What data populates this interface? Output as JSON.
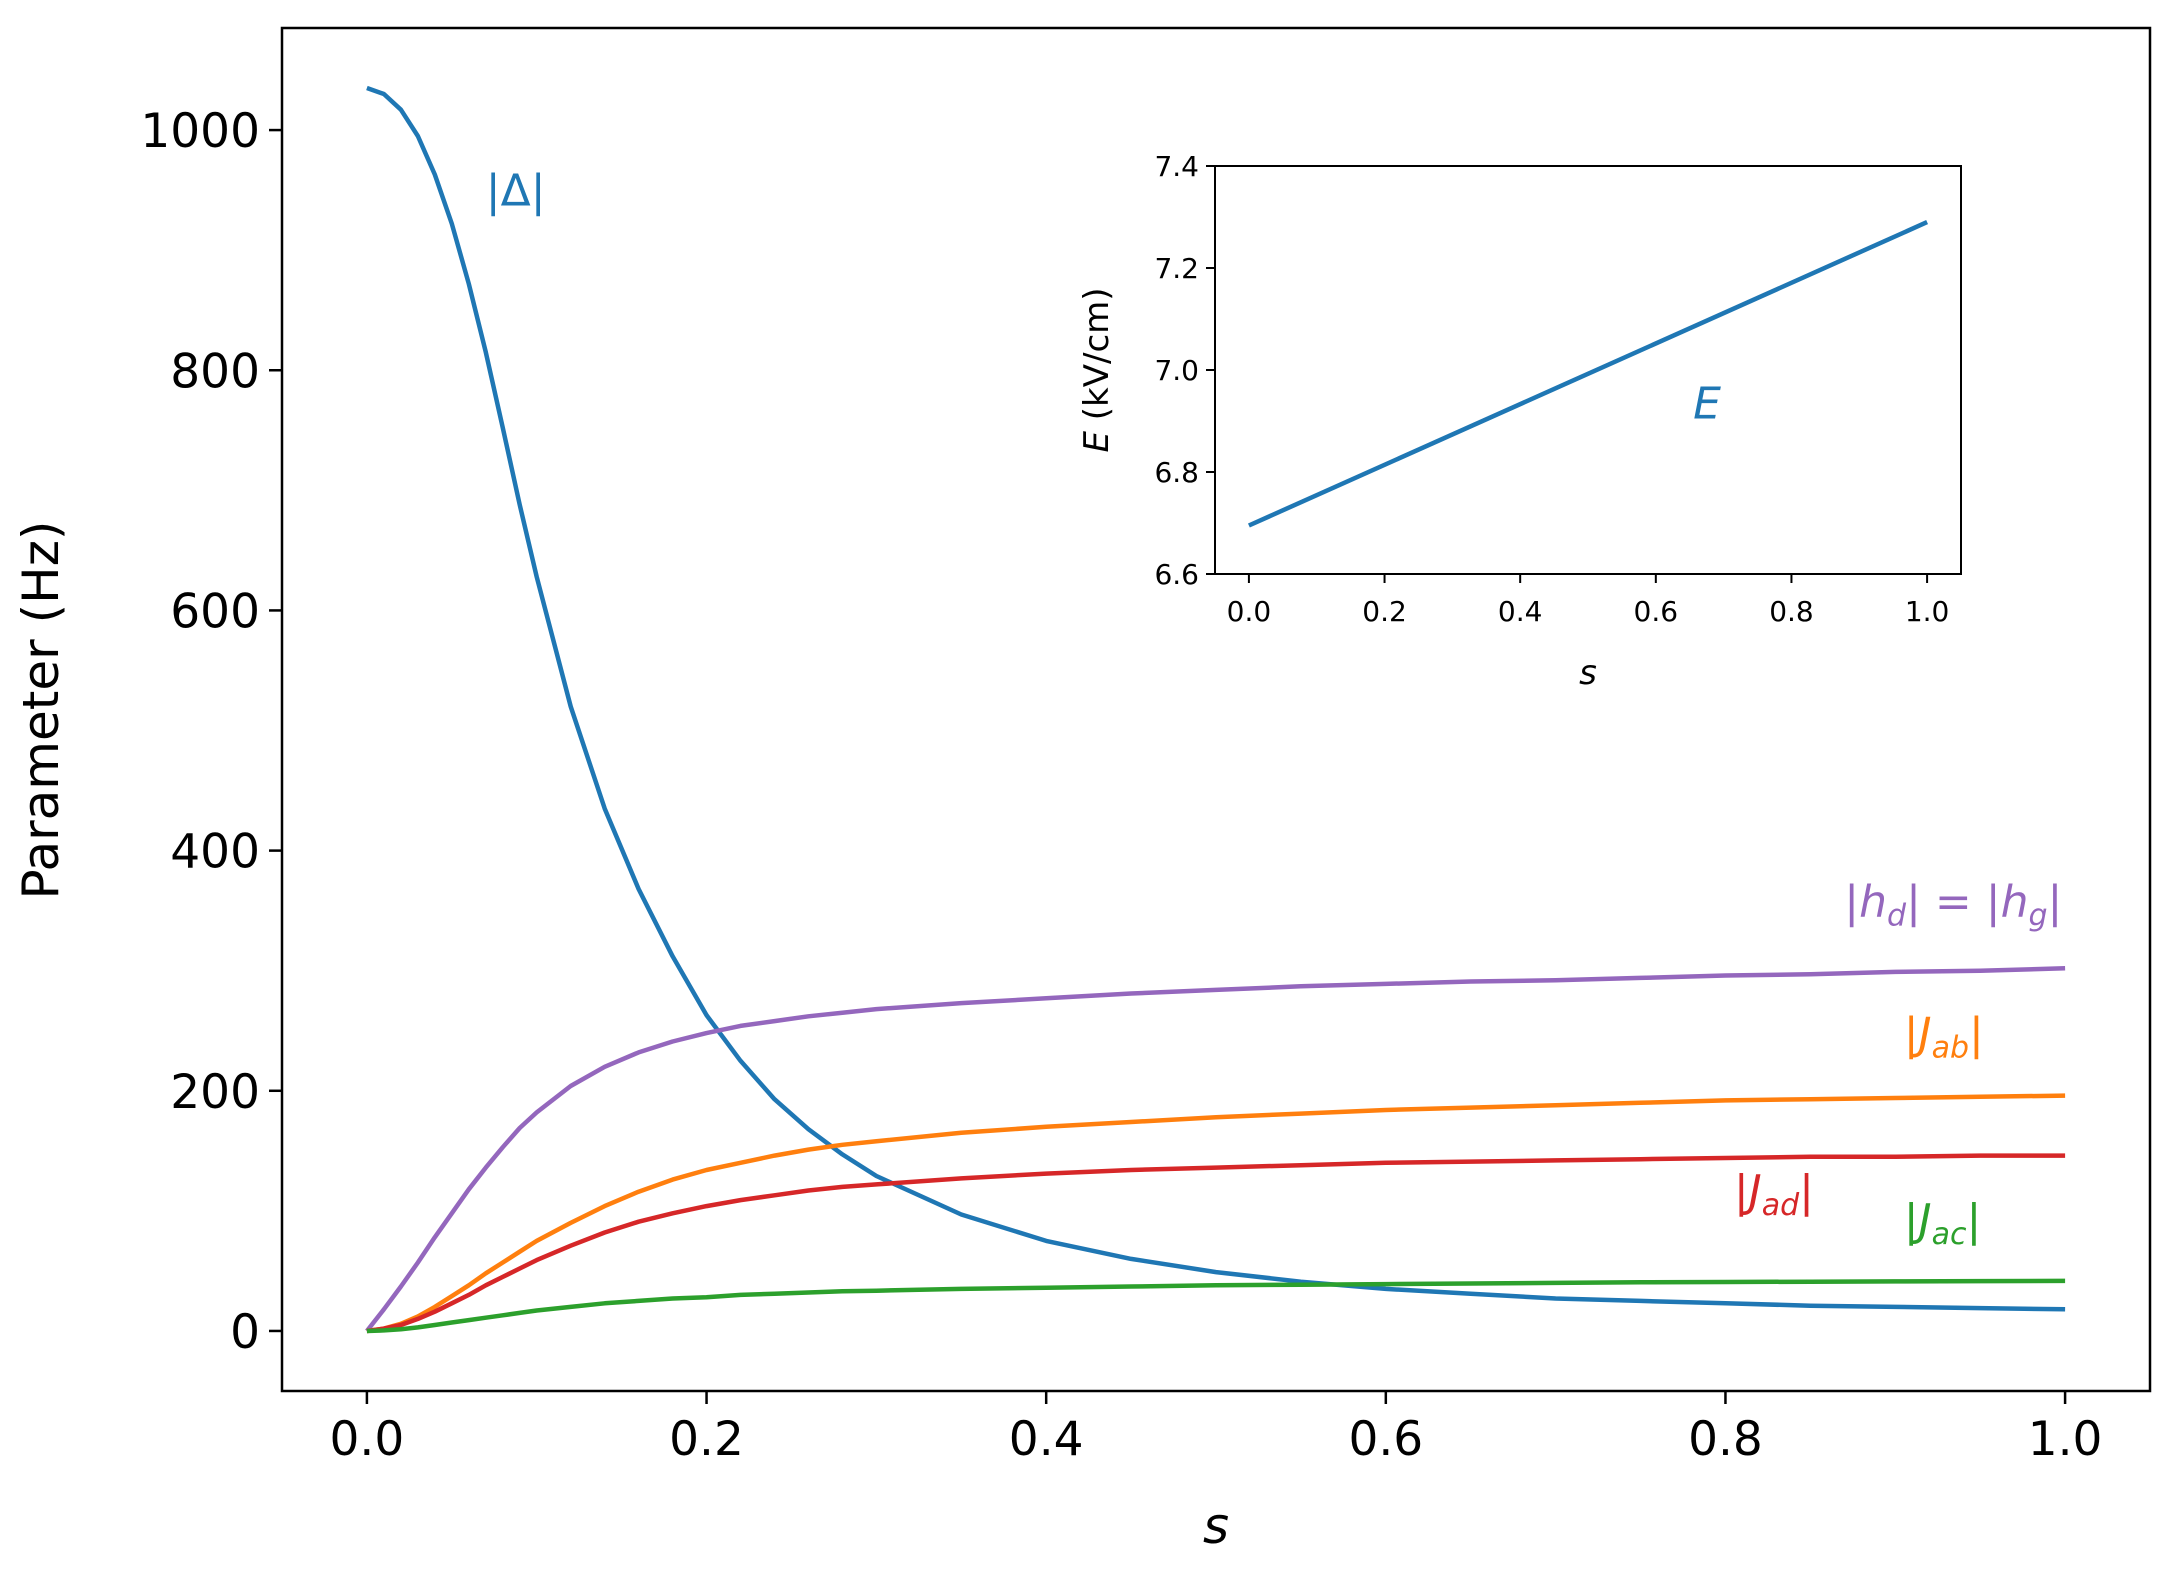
{
  "chart_data": [
    {
      "type": "line",
      "xlabel": "s",
      "ylabel": "Parameter (Hz)",
      "xlim": [
        -0.05,
        1.05
      ],
      "ylim": [
        -50,
        1085
      ],
      "x_ticks": [
        0.0,
        0.2,
        0.4,
        0.6,
        0.8,
        1.0
      ],
      "x_tick_labels": [
        "0.0",
        "0.2",
        "0.4",
        "0.6",
        "0.8",
        "1.0"
      ],
      "y_ticks": [
        0,
        200,
        400,
        600,
        800,
        1000
      ],
      "y_tick_labels": [
        "0",
        "200",
        "400",
        "600",
        "800",
        "1000"
      ],
      "grid": false,
      "legend": "none",
      "x": [
        0.0,
        0.01,
        0.02,
        0.03,
        0.04,
        0.05,
        0.06,
        0.07,
        0.08,
        0.09,
        0.1,
        0.12,
        0.14,
        0.16,
        0.18,
        0.2,
        0.22,
        0.24,
        0.26,
        0.28,
        0.3,
        0.35,
        0.4,
        0.45,
        0.5,
        0.55,
        0.6,
        0.65,
        0.7,
        0.75,
        0.8,
        0.85,
        0.9,
        0.95,
        1.0
      ],
      "series": [
        {
          "color": "#1f77b4",
          "values": [
            1035,
            1030,
            1017,
            995,
            963,
            922,
            872,
            815,
            752,
            688,
            628,
            520,
            435,
            368,
            312,
            263,
            225,
            193,
            168,
            147,
            129,
            97,
            75,
            60,
            49,
            41,
            35,
            31,
            27,
            25,
            23,
            21,
            20,
            19,
            18
          ]
        },
        {
          "color": "#9467bd",
          "values": [
            0,
            18,
            37,
            57,
            78,
            98,
            118,
            136,
            153,
            169,
            182,
            204,
            220,
            232,
            241,
            248,
            254,
            258,
            262,
            265,
            268,
            273,
            277,
            281,
            284,
            287,
            289,
            291,
            292,
            294,
            296,
            297,
            299,
            300,
            302
          ]
        },
        {
          "color": "#ff7f0e",
          "values": [
            0,
            2,
            6,
            12,
            20,
            29,
            38,
            48,
            57,
            66,
            75,
            90,
            104,
            116,
            126,
            134,
            140,
            146,
            151,
            155,
            158,
            165,
            170,
            174,
            178,
            181,
            184,
            186,
            188,
            190,
            192,
            193,
            194,
            195,
            196
          ]
        },
        {
          "color": "#d62728",
          "values": [
            0,
            2,
            5,
            10,
            16,
            23,
            30,
            38,
            45,
            52,
            59,
            71,
            82,
            91,
            98,
            104,
            109,
            113,
            117,
            120,
            122,
            127,
            131,
            134,
            136,
            138,
            140,
            141,
            142,
            143,
            144,
            145,
            145,
            146,
            146
          ]
        },
        {
          "color": "#2ca02c",
          "values": [
            0,
            0.5,
            1.5,
            3,
            5,
            7,
            9,
            11,
            13,
            15,
            17,
            20,
            23,
            25,
            27,
            28,
            30,
            31,
            32,
            33,
            33.5,
            35,
            36,
            37,
            38,
            38.5,
            39,
            39.5,
            40,
            40.5,
            40.8,
            41,
            41.3,
            41.5,
            41.7
          ]
        }
      ],
      "annotations": [
        {
          "text": "|Δ|",
          "x": 0.07,
          "y": 937,
          "color": "#1f77b4"
        },
        {
          "text": "|h_d| = |h_g|",
          "x": 0.87,
          "y": 345,
          "color": "#9467bd"
        },
        {
          "text": "|J_ab|",
          "x": 0.905,
          "y": 235,
          "color": "#ff7f0e"
        },
        {
          "text": "|J_ad|",
          "x": 0.805,
          "y": 104,
          "color": "#d62728"
        },
        {
          "text": "|J_ac|",
          "x": 0.905,
          "y": 80,
          "color": "#2ca02c"
        }
      ]
    },
    {
      "type": "line",
      "xlabel": "s",
      "ylabel": "E (kV/cm)",
      "xlim": [
        -0.05,
        1.05
      ],
      "ylim": [
        6.6,
        7.4
      ],
      "x_ticks": [
        0.0,
        0.2,
        0.4,
        0.6,
        0.8,
        1.0
      ],
      "x_tick_labels": [
        "0.0",
        "0.2",
        "0.4",
        "0.6",
        "0.8",
        "1.0"
      ],
      "y_ticks": [
        6.6,
        6.8,
        7.0,
        7.2,
        7.4
      ],
      "y_tick_labels": [
        "6.6",
        "6.8",
        "7.0",
        "7.2",
        "7.4"
      ],
      "grid": false,
      "legend": "none",
      "x": [
        0.0,
        1.0
      ],
      "series": [
        {
          "color": "#1f77b4",
          "values": [
            6.695,
            7.29
          ]
        }
      ],
      "annotations": [
        {
          "text": "E",
          "x": 0.655,
          "y": 6.905,
          "color": "#1f77b4"
        }
      ]
    }
  ]
}
